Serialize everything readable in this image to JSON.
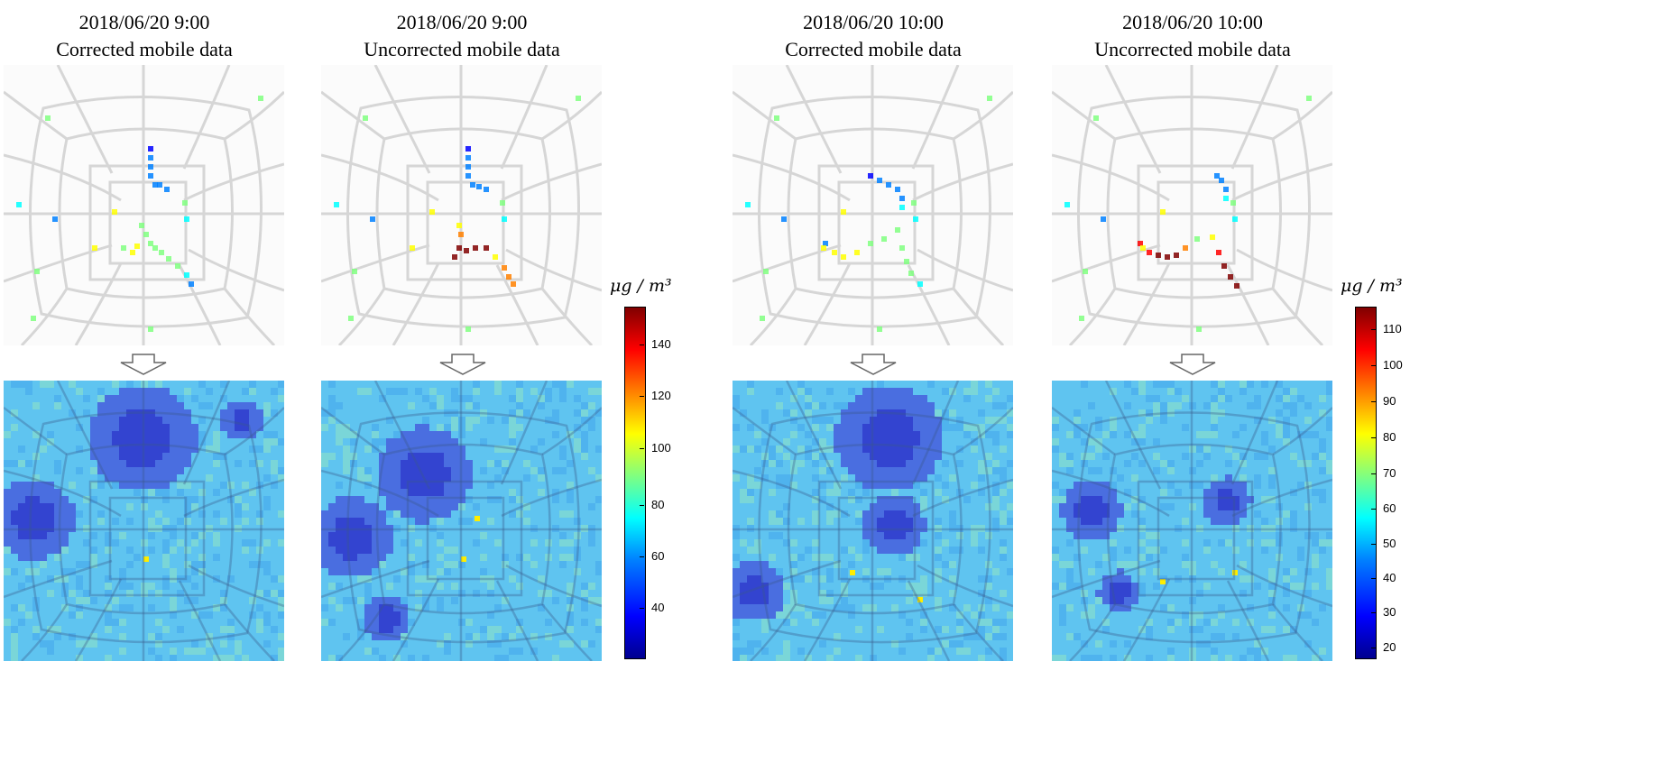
{
  "panels": [
    {
      "timestamp": "2018/06/20 9:00",
      "label": "Corrected mobile data"
    },
    {
      "timestamp": "2018/06/20 9:00",
      "label": "Uncorrected mobile data"
    },
    {
      "timestamp": "2018/06/20 10:00",
      "label": "Corrected mobile data"
    },
    {
      "timestamp": "2018/06/20 10:00",
      "label": "Uncorrected mobile data"
    }
  ],
  "colorbars": [
    {
      "unit": "μg / m³",
      "ticks": [
        "40",
        "60",
        "80",
        "100",
        "120",
        "140"
      ]
    },
    {
      "unit": "μg / m³",
      "ticks": [
        "20",
        "30",
        "40",
        "50",
        "60",
        "70",
        "80",
        "90",
        "100",
        "110"
      ]
    }
  ],
  "colors": {
    "colormap": [
      "#00008f",
      "#0000ff",
      "#0080ff",
      "#00ffff",
      "#80ff80",
      "#ffff00",
      "#ff8000",
      "#ff0000",
      "#800000"
    ],
    "road": "#d6d6d6",
    "heat_base": "#5fc4f0",
    "heat_low": "#3d4fd6"
  }
}
